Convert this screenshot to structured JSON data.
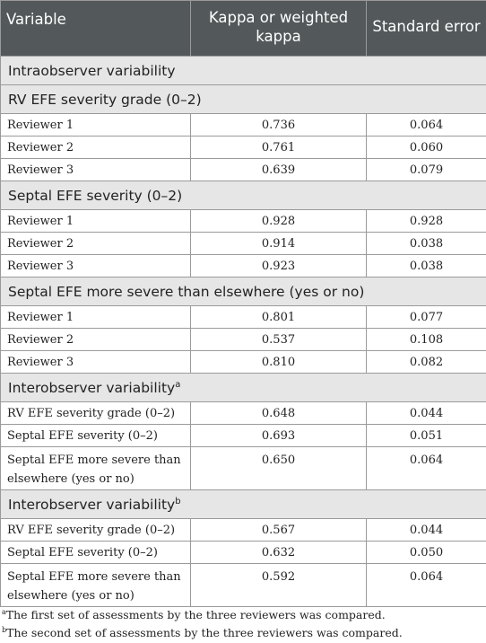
{
  "header": {
    "col1": "Variable",
    "col2": "Kappa or weighted kappa",
    "col3": "Standard error"
  },
  "sections": {
    "intra_title": "Intraobserver variability",
    "rv_title": "RV EFE severity grade (0–2)",
    "septal_title": "Septal EFE severity (0–2)",
    "more_title": "Septal EFE more severe than elsewhere (yes or no)",
    "inter_a_title": "Interobserver variability",
    "inter_a_sup": "a",
    "inter_b_title": "Interobserver variability",
    "inter_b_sup": "b"
  },
  "rows": {
    "rv": [
      {
        "label": "Reviewer 1",
        "kappa": "0.736",
        "se": "0.064"
      },
      {
        "label": "Reviewer 2",
        "kappa": "0.761",
        "se": "0.060"
      },
      {
        "label": "Reviewer 3",
        "kappa": "0.639",
        "se": "0.079"
      }
    ],
    "septal": [
      {
        "label": "Reviewer 1",
        "kappa": "0.928",
        "se": "0.928"
      },
      {
        "label": "Reviewer 2",
        "kappa": "0.914",
        "se": "0.038"
      },
      {
        "label": "Reviewer 3",
        "kappa": "0.923",
        "se": "0.038"
      }
    ],
    "more": [
      {
        "label": "Reviewer 1",
        "kappa": "0.801",
        "se": "0.077"
      },
      {
        "label": "Reviewer 2",
        "kappa": "0.537",
        "se": "0.108"
      },
      {
        "label": "Reviewer 3",
        "kappa": "0.810",
        "se": "0.082"
      }
    ],
    "inter_a": [
      {
        "label": "RV EFE severity grade (0–2)",
        "kappa": "0.648",
        "se": "0.044"
      },
      {
        "label": "Septal EFE severity (0–2)",
        "kappa": "0.693",
        "se": "0.051"
      },
      {
        "label": "Septal EFE more severe than elsewhere (yes or no)",
        "kappa": "0.650",
        "se": "0.064"
      }
    ],
    "inter_b": [
      {
        "label": "RV EFE severity grade (0–2)",
        "kappa": "0.567",
        "se": "0.044"
      },
      {
        "label": "Septal EFE severity (0–2)",
        "kappa": "0.632",
        "se": "0.050"
      },
      {
        "label": "Septal EFE more severe than elsewhere (yes or no)",
        "kappa": "0.592",
        "se": "0.064"
      }
    ]
  },
  "footnotes": {
    "a_mark": "a",
    "a_text": "The first set of assessments by the three reviewers was compared.",
    "b_mark": "b",
    "b_text": "The second set of assessments by the three reviewers was compared."
  }
}
